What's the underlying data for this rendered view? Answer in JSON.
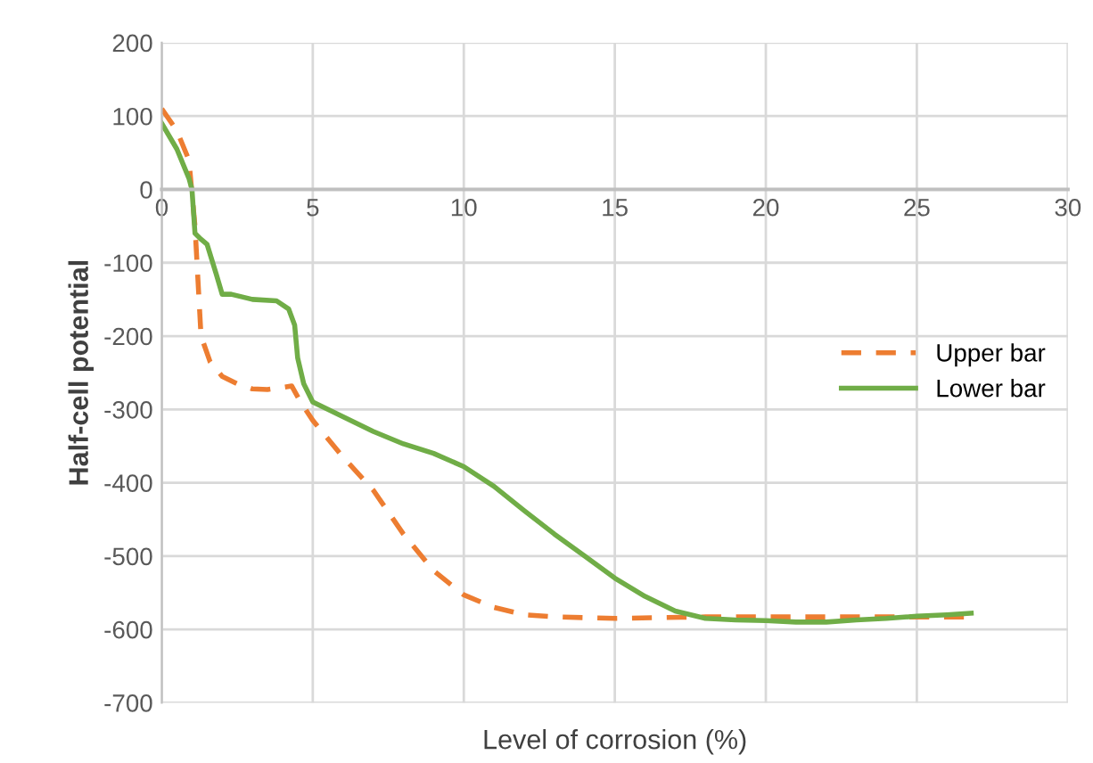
{
  "chart_data": {
    "type": "line",
    "xlabel": "Level of corrosion (%)",
    "ylabel": "Half-cell potential",
    "xlim": [
      0,
      30
    ],
    "xticks": [
      0,
      5,
      10,
      15,
      20,
      25,
      30
    ],
    "ylim": [
      -700,
      200
    ],
    "yticks": [
      -700,
      -600,
      -500,
      -400,
      -300,
      -200,
      -100,
      0,
      100,
      200
    ],
    "grid": true,
    "legend": "right",
    "marker": "none",
    "series": [
      {
        "name": "Upper bar",
        "color": "#ed7d31",
        "line_style": "dashed",
        "x": [
          0,
          0.5,
          0.9,
          1.1,
          1.3,
          1.6,
          2,
          2.5,
          3,
          3.5,
          4,
          4.3,
          4.6,
          5,
          5.5,
          6,
          7,
          8,
          9,
          10,
          11,
          12,
          13,
          15,
          18,
          20,
          22,
          24,
          26.7
        ],
        "values": [
          110,
          80,
          40,
          -50,
          -200,
          -235,
          -255,
          -265,
          -272,
          -273,
          -270,
          -268,
          -290,
          -315,
          -340,
          -365,
          -410,
          -470,
          -520,
          -553,
          -570,
          -580,
          -583,
          -585,
          -583,
          -583,
          -583,
          -583,
          -583
        ]
      },
      {
        "name": "Lower bar",
        "color": "#70ad47",
        "line_style": "solid",
        "x": [
          0,
          0.5,
          0.9,
          1.0,
          1.1,
          1.3,
          1.5,
          1.8,
          2.0,
          2.3,
          3,
          3.8,
          4.2,
          4.4,
          4.5,
          4.7,
          5,
          6,
          7,
          8,
          9,
          10,
          11,
          12,
          13,
          14,
          15,
          16,
          17,
          18,
          19,
          20,
          21,
          22,
          23,
          24,
          25,
          26,
          26.8
        ],
        "values": [
          90,
          55,
          15,
          0,
          -60,
          -68,
          -75,
          -115,
          -143,
          -143,
          -150,
          -152,
          -163,
          -185,
          -230,
          -265,
          -290,
          -310,
          -330,
          -347,
          -360,
          -378,
          -405,
          -438,
          -470,
          -500,
          -530,
          -555,
          -575,
          -585,
          -587,
          -588,
          -590,
          -590,
          -587,
          -585,
          -582,
          -580,
          -578
        ]
      }
    ]
  }
}
